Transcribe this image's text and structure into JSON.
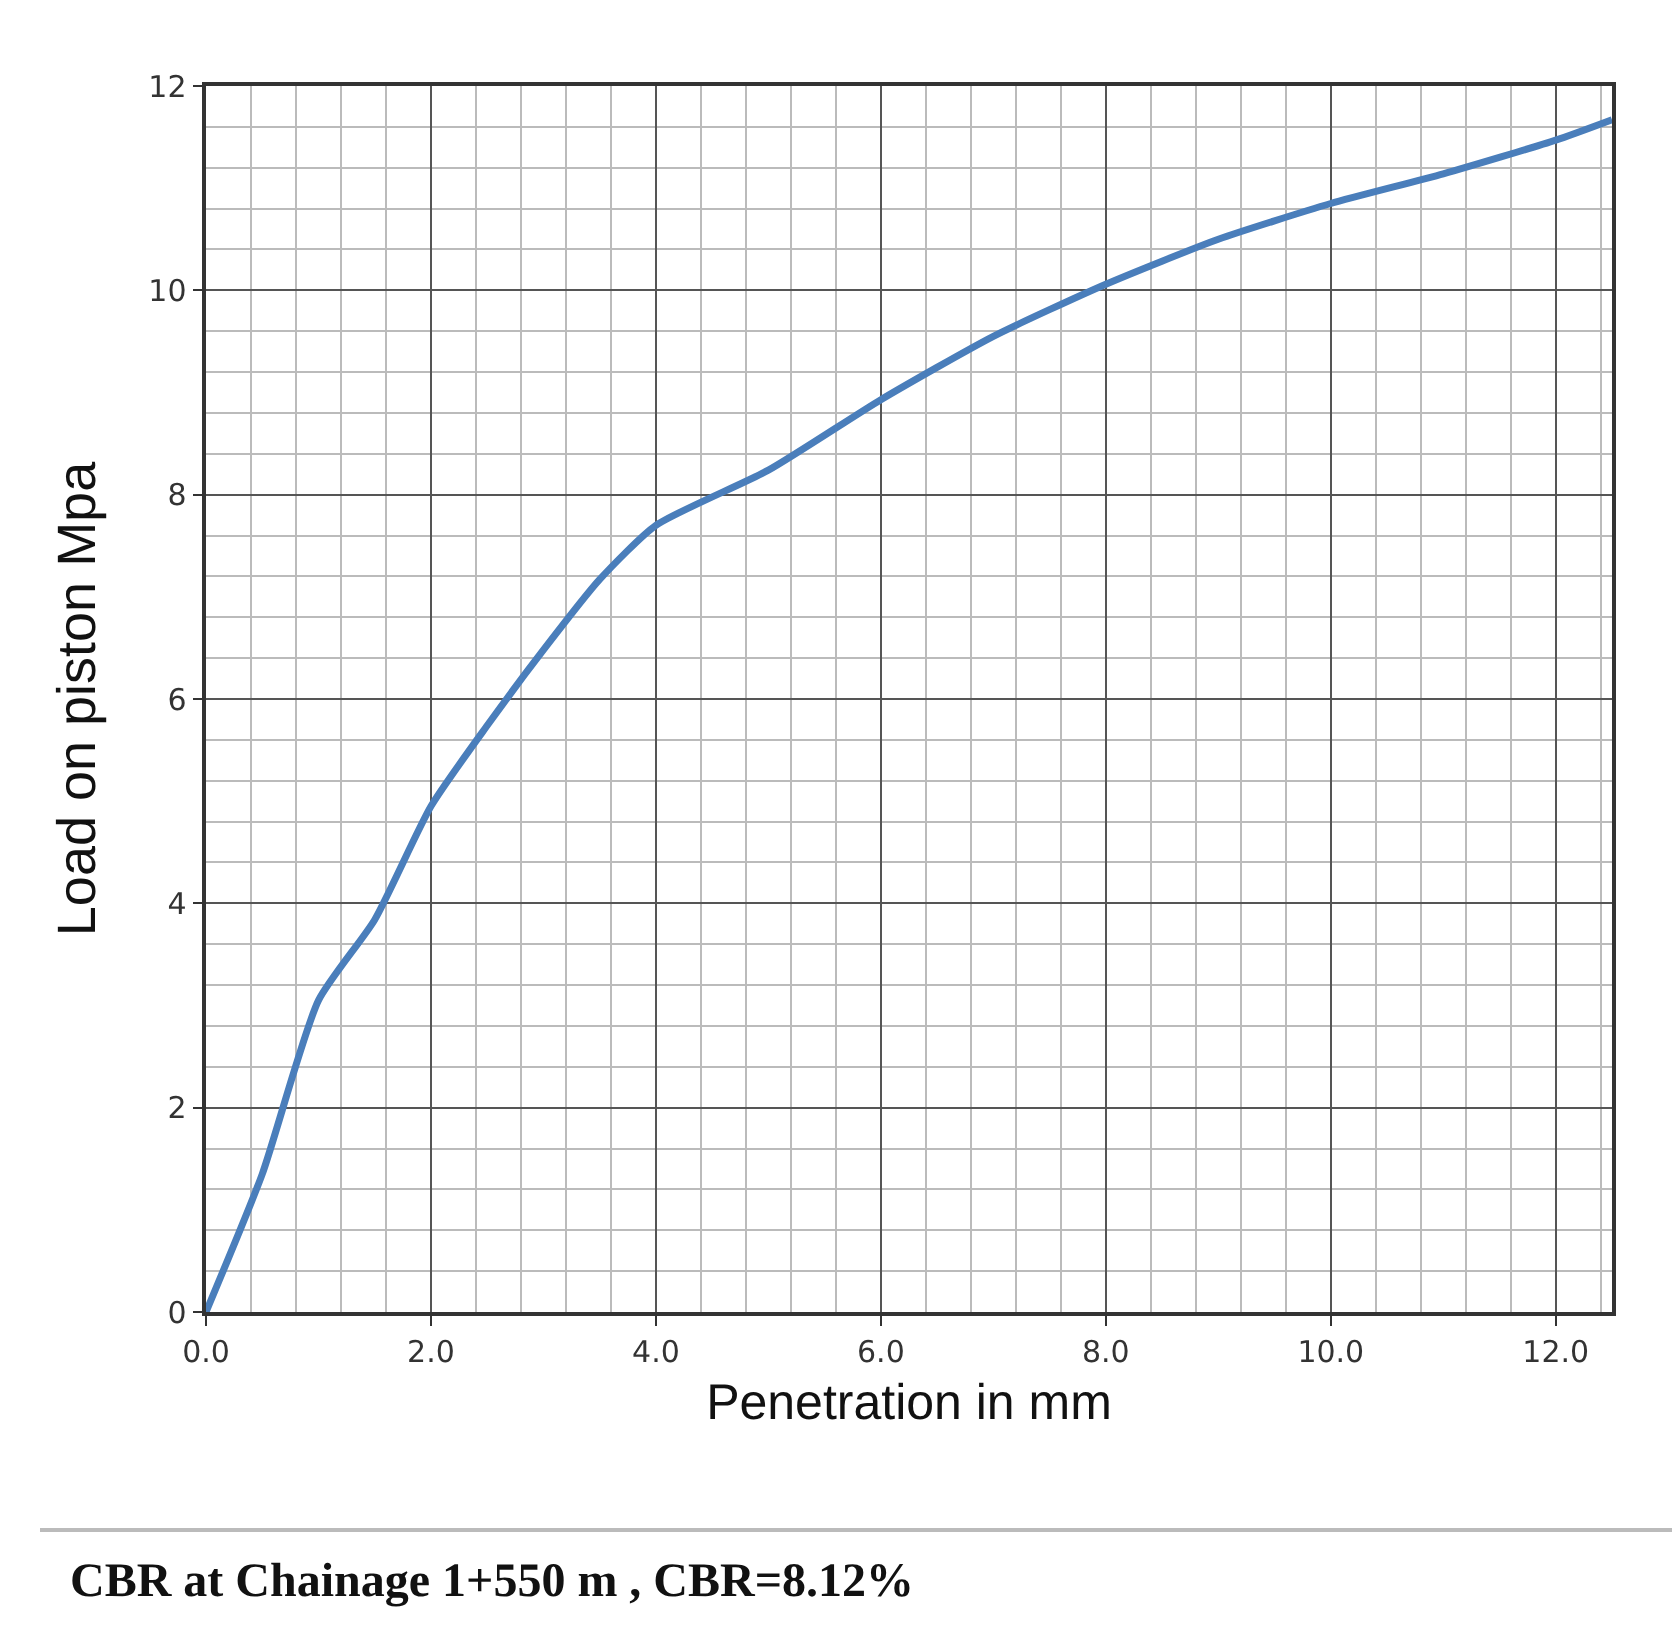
{
  "chart_data": {
    "type": "line",
    "xlabel": "Penetration in mm",
    "ylabel": "Load on piston Mpa",
    "x": [
      0,
      0.5,
      1,
      1.5,
      2,
      2.5,
      3,
      3.5,
      4,
      5,
      6,
      7,
      8,
      9,
      10,
      11,
      12,
      12.5
    ],
    "series": [
      {
        "color": "#4a7ebb",
        "values": [
          0,
          1.35,
          3.05,
          3.84,
          4.95,
          5.74,
          6.48,
          7.17,
          7.7,
          8.24,
          8.93,
          9.55,
          10.06,
          10.5,
          10.85,
          11.14,
          11.47,
          11.67
        ]
      }
    ],
    "xlim": [
      0,
      12.5
    ],
    "ylim": [
      0,
      12
    ],
    "xticks": [
      {
        "value": 0,
        "label": "0.0"
      },
      {
        "value": 2,
        "label": "2.0"
      },
      {
        "value": 4,
        "label": "4.0"
      },
      {
        "value": 6,
        "label": "6.0"
      },
      {
        "value": 8,
        "label": "8.0"
      },
      {
        "value": 10,
        "label": "10.0"
      },
      {
        "value": 12,
        "label": "12.0"
      }
    ],
    "yticks": [
      0,
      2,
      4,
      6,
      8,
      10,
      12
    ],
    "grid": true,
    "marker": "none",
    "line_style": "solid",
    "annotations": [
      "CBR at Chainage 1+550 m , CBR=8.12%"
    ]
  }
}
